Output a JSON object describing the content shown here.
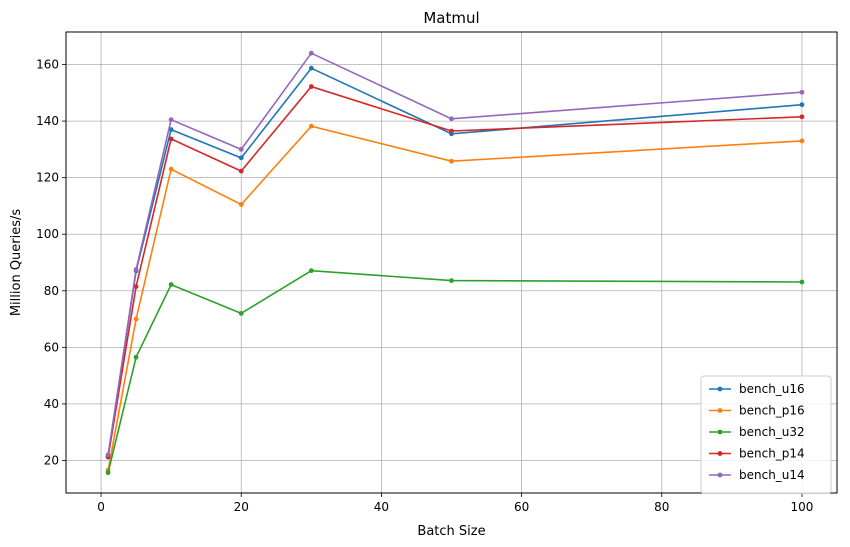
{
  "chart_data": {
    "type": "line",
    "title": "Matmul",
    "xlabel": "Batch Size",
    "ylabel": "Million Queries/s",
    "xlim": [
      -5,
      105
    ],
    "ylim": [
      8.5,
      171.5
    ],
    "xticks": [
      0,
      20,
      40,
      60,
      80,
      100
    ],
    "yticks": [
      20,
      40,
      60,
      80,
      100,
      120,
      140,
      160
    ],
    "grid": true,
    "legend_position": "lower right",
    "x": [
      1,
      5,
      10,
      20,
      30,
      50,
      100
    ],
    "series": [
      {
        "name": "bench_u16",
        "color": "#1f77b4",
        "values": [
          21.5,
          87,
          137,
          127,
          158.7,
          135.5,
          145.8
        ]
      },
      {
        "name": "bench_p16",
        "color": "#ff7f0e",
        "values": [
          16.5,
          70,
          123,
          110.5,
          138.2,
          125.8,
          133
        ]
      },
      {
        "name": "bench_u32",
        "color": "#2ca02c",
        "values": [
          15.7,
          56.5,
          82.2,
          72,
          87.1,
          83.6,
          83.1
        ]
      },
      {
        "name": "bench_p14",
        "color": "#d62728",
        "values": [
          21.2,
          81.5,
          133.7,
          122.3,
          152.2,
          136.5,
          141.5
        ]
      },
      {
        "name": "bench_u14",
        "color": "#9467bd",
        "values": [
          22,
          87.5,
          140.5,
          130,
          164,
          140.8,
          150.2
        ]
      }
    ]
  }
}
